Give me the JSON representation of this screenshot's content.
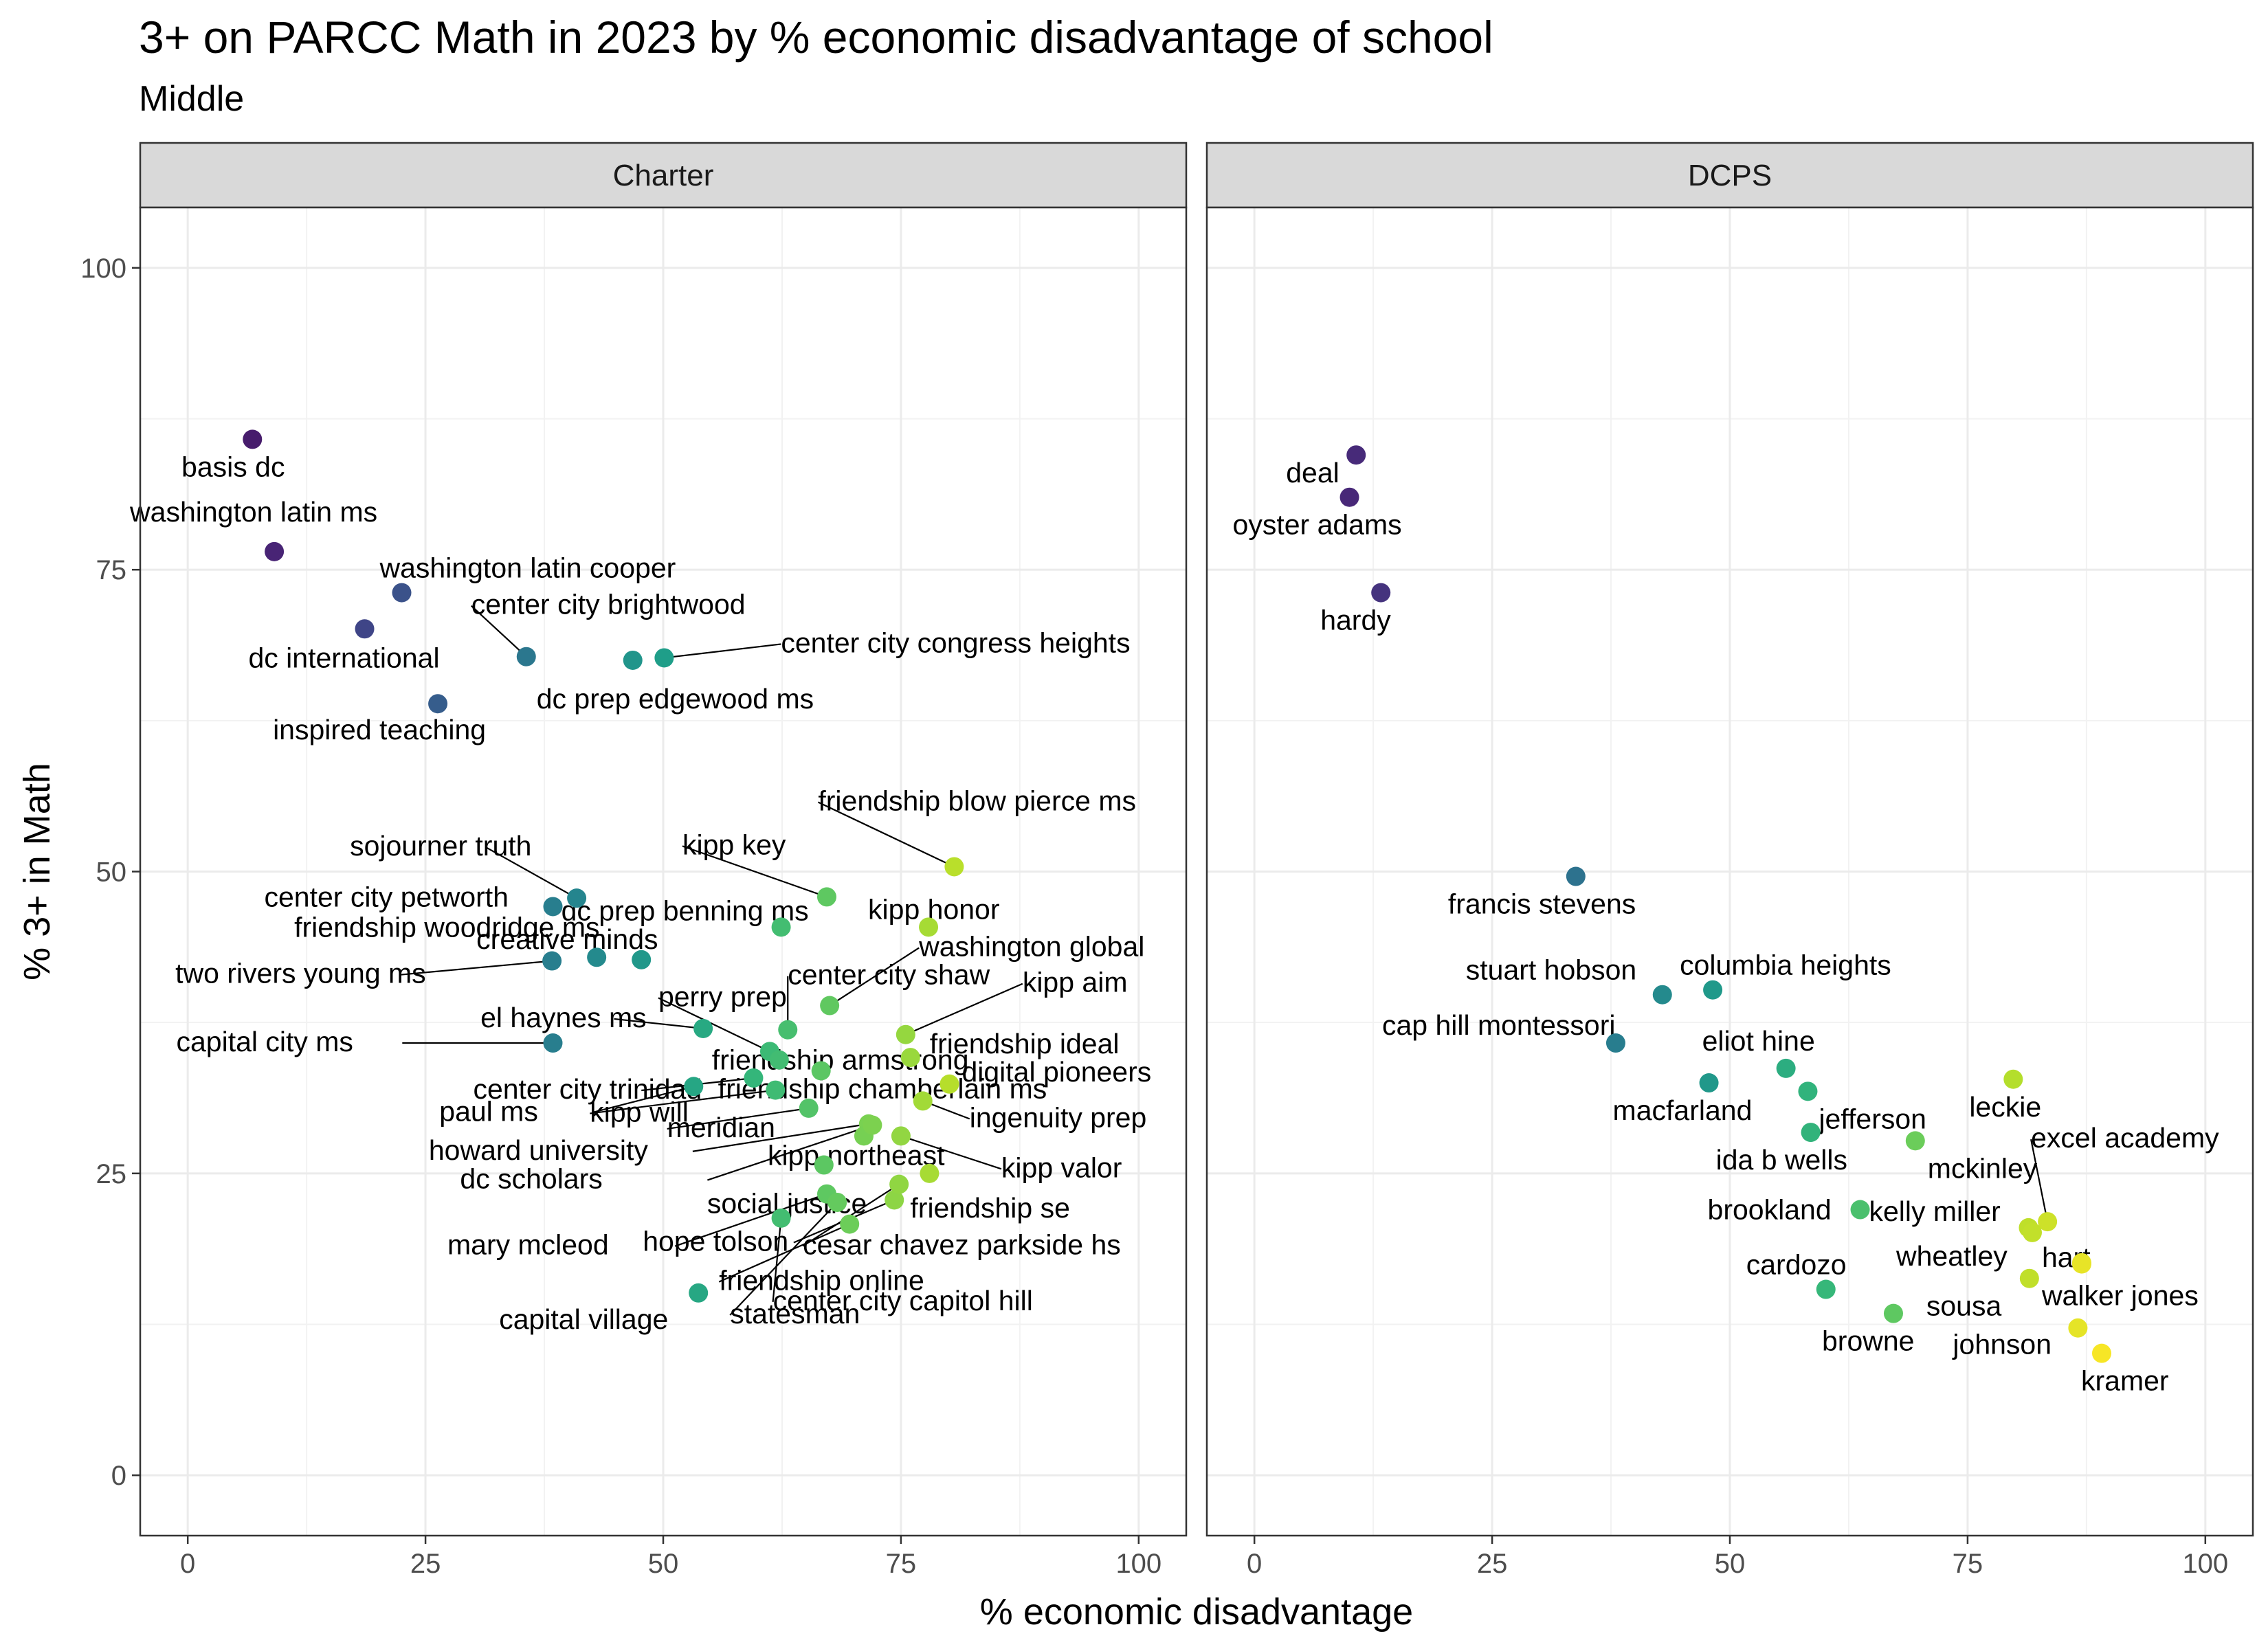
{
  "title": "3+ on PARCC Math in 2023 by % economic disadvantage of school",
  "subtitle": "Middle",
  "chart_data": {
    "type": "scatter",
    "xlabel": "% economic disadvantage",
    "ylabel": "% 3+ in Math",
    "xlim": [
      -5,
      105
    ],
    "ylim": [
      -5,
      105
    ],
    "x_ticks": [
      0,
      25,
      50,
      75,
      100
    ],
    "y_ticks": [
      0,
      25,
      50,
      75,
      100
    ],
    "grid": true,
    "color_scale": "viridis (by % economic disadvantage)",
    "panels": [
      {
        "name": "Charter",
        "points": [
          {
            "label": "basis dc",
            "x": 6.8,
            "y": 85.8
          },
          {
            "label": "washington latin ms",
            "x": 9.1,
            "y": 76.5
          },
          {
            "label": "washington latin cooper",
            "x": 22.5,
            "y": 73.1
          },
          {
            "label": "dc international",
            "x": 18.6,
            "y": 70.1
          },
          {
            "label": "center city brightwood",
            "x": 35.6,
            "y": 67.8
          },
          {
            "label": "dc prep edgewood ms",
            "x": 46.8,
            "y": 67.5
          },
          {
            "label": "center city congress heights",
            "x": 50.1,
            "y": 67.7
          },
          {
            "label": "inspired teaching",
            "x": 26.3,
            "y": 63.9
          },
          {
            "label": "friendship blow pierce ms",
            "x": 80.6,
            "y": 50.4
          },
          {
            "label": "kipp key",
            "x": 67.2,
            "y": 47.9
          },
          {
            "label": "sojourner truth",
            "x": 40.9,
            "y": 47.8
          },
          {
            "label": "center city petworth",
            "x": 38.4,
            "y": 47.1
          },
          {
            "label": "dc prep benning ms",
            "x": 62.4,
            "y": 45.4
          },
          {
            "label": "kipp honor",
            "x": 77.9,
            "y": 45.4
          },
          {
            "label": "friendship woodridge ms",
            "x": 43.0,
            "y": 42.9
          },
          {
            "label": "creative minds",
            "x": 47.7,
            "y": 42.7
          },
          {
            "label": "two rivers young ms",
            "x": 38.3,
            "y": 42.6
          },
          {
            "label": "washington global",
            "x": 67.5,
            "y": 38.9
          },
          {
            "label": "center city shaw",
            "x": 63.1,
            "y": 36.9
          },
          {
            "label": "perry prep",
            "x": 61.2,
            "y": 35.1
          },
          {
            "label": "el haynes ms",
            "x": 54.2,
            "y": 37.0
          },
          {
            "label": "kipp aim",
            "x": 75.5,
            "y": 36.5
          },
          {
            "label": "friendship armstrong",
            "x": 62.2,
            "y": 34.4
          },
          {
            "label": "friendship ideal",
            "x": 76.0,
            "y": 34.6
          },
          {
            "label": "capital city ms",
            "x": 38.4,
            "y": 35.8
          },
          {
            "label": "center city trinidad",
            "x": 59.5,
            "y": 32.9
          },
          {
            "label": "digital pioneers",
            "x": 80.1,
            "y": 32.4
          },
          {
            "label": "friendship chamberlain ms",
            "x": 66.6,
            "y": 33.5
          },
          {
            "label": "paul ms",
            "x": 53.2,
            "y": 32.2
          },
          {
            "label": "kipp will",
            "x": 61.8,
            "y": 31.9
          },
          {
            "label": "ingenuity prep",
            "x": 77.3,
            "y": 31.0
          },
          {
            "label": "meridian",
            "x": 65.3,
            "y": 30.4
          },
          {
            "label": "howard university",
            "x": 71.6,
            "y": 29.1
          },
          {
            "label": "kipp northeast",
            "x": 71.1,
            "y": 28.1
          },
          {
            "label": "kipp valor",
            "x": 75.0,
            "y": 28.1
          },
          {
            "label": "dc scholars",
            "x": 72.0,
            "y": 29.0
          },
          {
            "label": "social justice",
            "x": 66.9,
            "y": 25.7
          },
          {
            "label": "friendship se",
            "x": 78.0,
            "y": 25.0
          },
          {
            "label": "mary mcleod",
            "x": 67.2,
            "y": 23.3
          },
          {
            "label": "hope tolson",
            "x": 74.3,
            "y": 22.8
          },
          {
            "label": "cesar chavez parkside hs",
            "x": 74.8,
            "y": 24.1
          },
          {
            "label": "center city capitol hill",
            "x": 62.4,
            "y": 21.3
          },
          {
            "label": "friendship online",
            "x": 69.6,
            "y": 20.8
          },
          {
            "label": "statesman",
            "x": 68.3,
            "y": 22.6
          },
          {
            "label": "capital village",
            "x": 53.7,
            "y": 15.1
          }
        ]
      },
      {
        "name": "DCPS",
        "points": [
          {
            "label": "deal",
            "x": 10.7,
            "y": 84.5
          },
          {
            "label": "oyster adams",
            "x": 10.0,
            "y": 81.0
          },
          {
            "label": "hardy",
            "x": 13.3,
            "y": 73.1
          },
          {
            "label": "francis stevens",
            "x": 33.8,
            "y": 49.6
          },
          {
            "label": "stuart hobson",
            "x": 42.9,
            "y": 39.8
          },
          {
            "label": "columbia heights",
            "x": 48.2,
            "y": 40.2
          },
          {
            "label": "cap hill montessori",
            "x": 38.0,
            "y": 35.8
          },
          {
            "label": "eliot hine",
            "x": 55.9,
            "y": 33.7
          },
          {
            "label": "macfarland",
            "x": 47.8,
            "y": 32.5
          },
          {
            "label": "jefferson",
            "x": 58.2,
            "y": 31.8
          },
          {
            "label": "leckie",
            "x": 79.8,
            "y": 32.8
          },
          {
            "label": "ida b wells",
            "x": 58.5,
            "y": 28.4
          },
          {
            "label": "mckinley",
            "x": 69.5,
            "y": 27.7
          },
          {
            "label": "brookland",
            "x": 63.7,
            "y": 22.0
          },
          {
            "label": "kelly miller",
            "x": 81.4,
            "y": 20.5
          },
          {
            "label": "excel academy",
            "x": 83.4,
            "y": 21.0
          },
          {
            "label": "wheatley",
            "x": 81.8,
            "y": 20.1
          },
          {
            "label": "hart",
            "x": 87.0,
            "y": 17.6
          },
          {
            "label": "cardozo",
            "x": 60.1,
            "y": 15.4
          },
          {
            "label": "sousa",
            "x": 81.5,
            "y": 16.3
          },
          {
            "label": "walker jones",
            "x": 87.0,
            "y": 17.5
          },
          {
            "label": "browne",
            "x": 67.2,
            "y": 13.4
          },
          {
            "label": "johnson",
            "x": 86.6,
            "y": 12.2
          },
          {
            "label": "kramer",
            "x": 89.1,
            "y": 10.1
          }
        ]
      }
    ]
  }
}
